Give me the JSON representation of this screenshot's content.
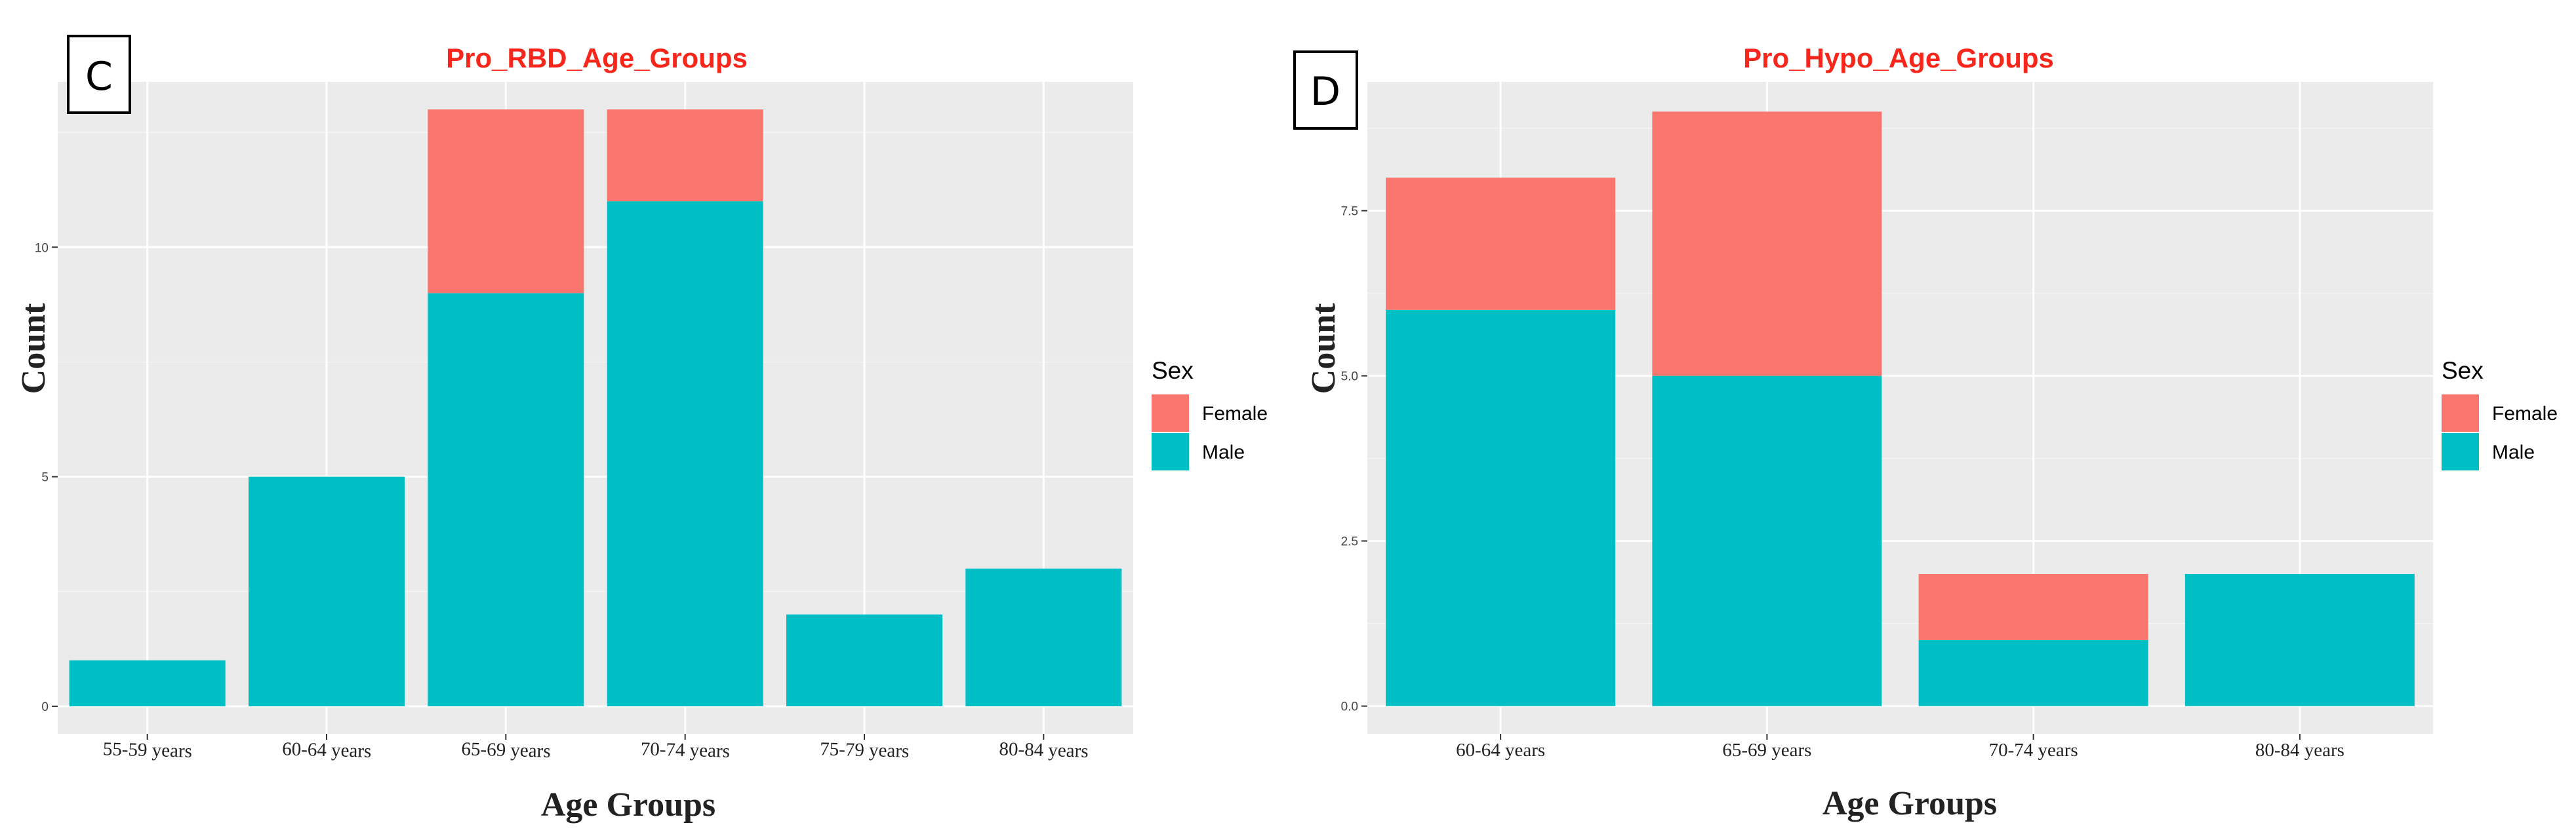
{
  "colors": {
    "female": "#f8766d",
    "male": "#00bfc4",
    "panel_bg": "#ebebeb",
    "grid_major": "#ffffff",
    "title": "#f8261b"
  },
  "chart_data": [
    {
      "type": "bar",
      "stacked": true,
      "panel_label": "C",
      "title": "Pro_RBD_Age_Groups",
      "xlabel": "Age Groups",
      "ylabel": "Count",
      "categories": [
        "55-59 years",
        "60-64 years",
        "65-69 years",
        "70-74 years",
        "75-79 years",
        "80-84 years"
      ],
      "series": [
        {
          "name": "Male",
          "values": [
            1,
            5,
            9,
            11,
            2,
            3
          ]
        },
        {
          "name": "Female",
          "values": [
            0,
            0,
            4,
            2,
            0,
            0
          ]
        }
      ],
      "ylim": [
        -0.6,
        13.6
      ],
      "yticks": [
        0,
        5,
        10
      ],
      "ytick_labels": [
        "0",
        "5",
        "10"
      ],
      "grid": true,
      "legend": {
        "title": "Sex",
        "entries": [
          "Female",
          "Male"
        ],
        "position": "right"
      }
    },
    {
      "type": "bar",
      "stacked": true,
      "panel_label": "D",
      "title": "Pro_Hypo_Age_Groups",
      "xlabel": "Age Groups",
      "ylabel": "Count",
      "categories": [
        "60-64 years",
        "65-69 years",
        "70-74 years",
        "80-84 years"
      ],
      "series": [
        {
          "name": "Male",
          "values": [
            6,
            5,
            1,
            2
          ]
        },
        {
          "name": "Female",
          "values": [
            2,
            4,
            1,
            0
          ]
        }
      ],
      "ylim": [
        -0.42,
        9.45
      ],
      "yticks": [
        0,
        2.5,
        5,
        7.5
      ],
      "ytick_labels": [
        "0.0",
        "2.5",
        "5.0",
        "7.5"
      ],
      "grid": true,
      "legend": {
        "title": "Sex",
        "entries": [
          "Female",
          "Male"
        ],
        "position": "right"
      }
    }
  ]
}
